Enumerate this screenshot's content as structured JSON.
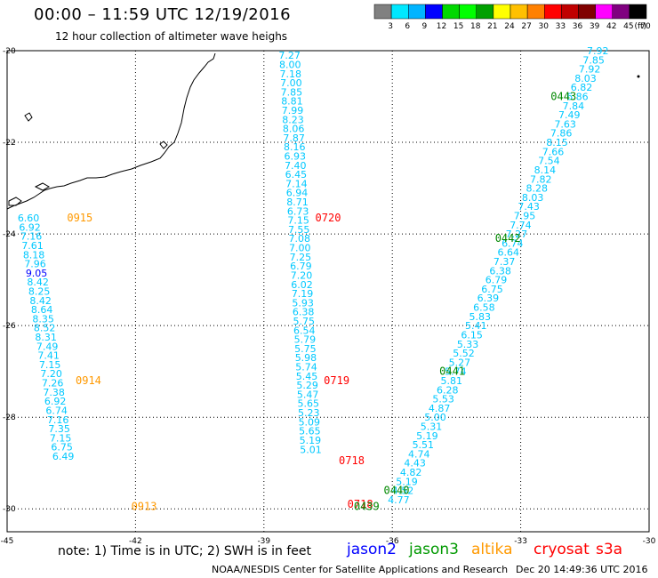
{
  "header": {
    "title": "00:00 – 11:59 UTC 12/19/2016",
    "subtitle": "12 hour collection of altimeter wave heighs"
  },
  "colorbar": {
    "labels": [
      "3",
      "6",
      "9",
      "12",
      "15",
      "18",
      "21",
      "24",
      "27",
      "30",
      "33",
      "36",
      "39",
      "42",
      "45",
      "70"
    ],
    "unit": "(ft)",
    "colors": [
      "#808080",
      "#00e8ff",
      "#00b4ff",
      "#0000ff",
      "#00d800",
      "#00ff00",
      "#00a000",
      "#ffff00",
      "#ffc000",
      "#ff8000",
      "#ff0000",
      "#c00000",
      "#800000",
      "#ff00ff",
      "#800080",
      "#000000"
    ]
  },
  "axes": {
    "lon_labels": [
      "-45",
      "-42",
      "-39",
      "-36",
      "-33",
      "-30"
    ],
    "lat_labels": [
      "-20",
      "-22",
      "-24",
      "-26",
      "-28",
      "-30"
    ]
  },
  "tracks": [
    {
      "name": "altika",
      "color": "#00c8ff",
      "start_lon": -44.5,
      "start_lat": -23.65,
      "lon_step": 0.0312,
      "lat_step": -0.2,
      "values": [
        "6.60",
        "6.92",
        "7.16",
        "7.61",
        "8.18",
        "7.96",
        "9.05",
        "8.42",
        "8.25",
        "8.42",
        "8.64",
        "8.35",
        "8.52",
        "8.31",
        "7.49",
        "7.41",
        "7.15",
        "7.20",
        "7.26",
        "7.38",
        "6.92",
        "6.74",
        "7.16",
        "7.35",
        "7.15",
        "6.75",
        "6.49"
      ]
    },
    {
      "name": "jason2",
      "color": "#00c8ff",
      "start_lon": -38.4,
      "start_lat": -20.1,
      "lon_step": 0.0115,
      "lat_step": -0.2,
      "values": [
        "7.27",
        "8.00",
        "7.18",
        "7.00",
        "7.85",
        "8.81",
        "7.99",
        "8.23",
        "8.06",
        "7.87",
        "8.16",
        "6.93",
        "7.40",
        "6.45",
        "7.14",
        "6.94",
        "8.71",
        "6.73",
        "7.15",
        "7.55",
        "7.08",
        "7.00",
        "7.25",
        "6.79",
        "7.20",
        "6.02",
        "7.19",
        "5.93",
        "6.38",
        "5.75",
        "6.54",
        "5.79",
        "5.75",
        "5.98",
        "5.74",
        "5.45",
        "5.29",
        "5.47",
        "5.65",
        "5.23",
        "5.09",
        "5.65",
        "5.19",
        "5.01"
      ]
    },
    {
      "name": "sentinel",
      "color": "#00c8ff",
      "start_lon": -31.2,
      "start_lat": -20.0,
      "lon_step": -0.0949,
      "lat_step": -0.2,
      "values": [
        "7.92",
        "7.85",
        "7.92",
        "8.03",
        "6.82",
        "6.86",
        "7.84",
        "7.49",
        "7.63",
        "7.86",
        "8.15",
        "7.66",
        "7.54",
        "8.14",
        "7.82",
        "8.28",
        "8.03",
        "7.43",
        "7.95",
        "7.74",
        "7.27",
        "6.74",
        "6.64",
        "7.37",
        "6.38",
        "6.79",
        "6.75",
        "6.39",
        "6.58",
        "5.83",
        "5.41",
        "6.15",
        "5.33",
        "5.52",
        "5.27",
        "5.74",
        "5.81",
        "6.28",
        "5.53",
        "4.87",
        "5.00",
        "5.31",
        "5.19",
        "5.51",
        "4.74",
        "4.43",
        "4.82",
        "5.19",
        "4.52",
        "4.77"
      ]
    }
  ],
  "time_labels": [
    {
      "text": "0915",
      "color": "#ff9900",
      "lon": -43.3,
      "lat": -23.65
    },
    {
      "text": "0914",
      "color": "#ff9900",
      "lon": -43.1,
      "lat": -27.2
    },
    {
      "text": "0913",
      "color": "#ff9900",
      "lon": -41.8,
      "lat": -29.95
    },
    {
      "text": "0720",
      "color": "#ff0000",
      "lon": -37.5,
      "lat": -23.65
    },
    {
      "text": "0719",
      "color": "#ff0000",
      "lon": -37.3,
      "lat": -27.2
    },
    {
      "text": "0718",
      "color": "#ff0000",
      "lon": -36.95,
      "lat": -28.95
    },
    {
      "text": "0718",
      "color": "#ff0000",
      "lon": -36.75,
      "lat": -29.9
    },
    {
      "text": "0443",
      "color": "#008800",
      "lon": -32.0,
      "lat": -21.0
    },
    {
      "text": "0442",
      "color": "#008800",
      "lon": -33.3,
      "lat": -24.1
    },
    {
      "text": "0441",
      "color": "#008800",
      "lon": -34.6,
      "lat": -27.0
    },
    {
      "text": "0440",
      "color": "#008800",
      "lon": -35.9,
      "lat": -29.6
    },
    {
      "text": "0439",
      "color": "#008800",
      "lon": -36.6,
      "lat": -29.95
    }
  ],
  "footer": {
    "note": "note: 1) Time is in UTC; 2) SWH is in feet",
    "satellites": [
      {
        "label": "jason2",
        "color": "#0000ff"
      },
      {
        "label": "jason3",
        "color": "#009900"
      },
      {
        "label": "altika",
        "color": "#ff9900"
      },
      {
        "label": "cryosat",
        "color": "#ff0000"
      },
      {
        "label": "s3a",
        "color": "#ff0000"
      }
    ],
    "credit": "NOAA/NESDIS Center for Satellite Applications and Research",
    "date": "Dec 20 14:49:36 UTC 2016"
  }
}
